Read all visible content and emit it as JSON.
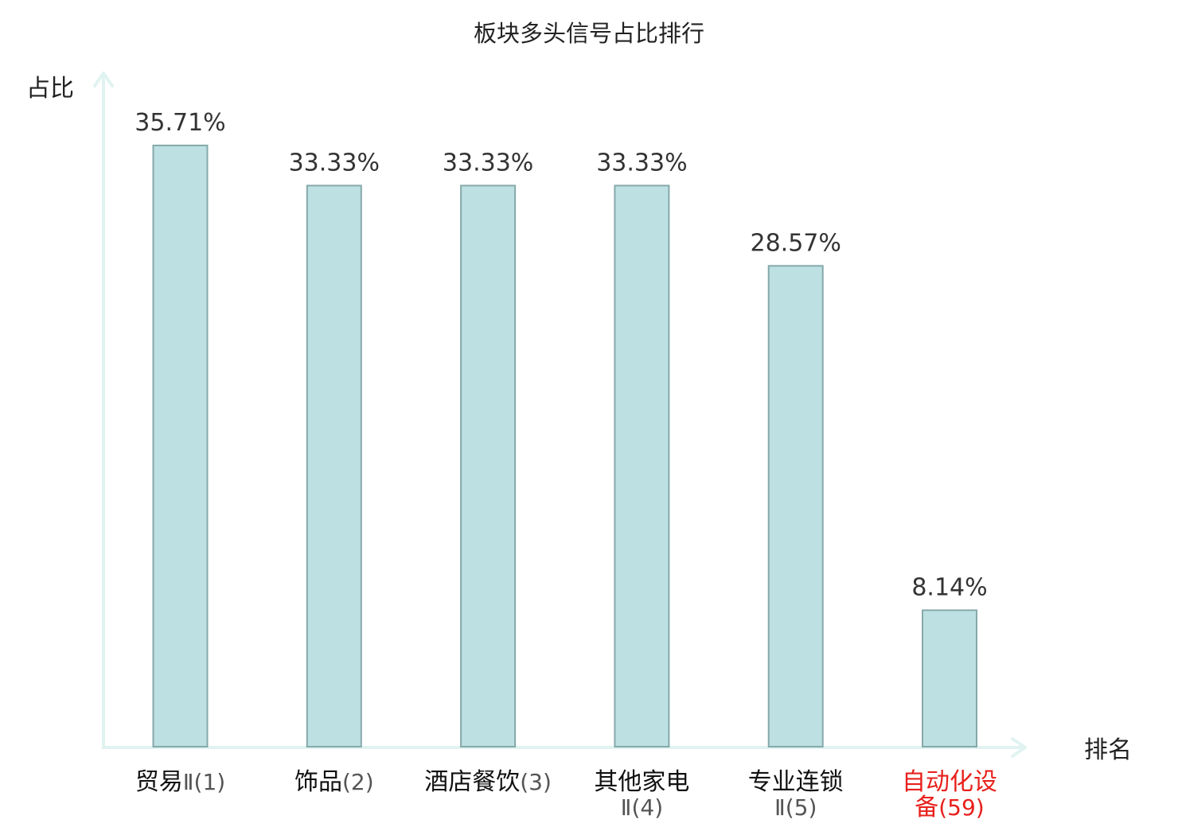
{
  "chart_data": {
    "type": "bar",
    "title": "板块多头信号占比排行",
    "xlabel": "排名",
    "ylabel": "占比",
    "ylim": [
      0,
      0.38
    ],
    "grid": false,
    "categories": [
      {
        "lines": [
          [
            "贸易",
            "Ⅱ(1)"
          ]
        ],
        "highlight": false
      },
      {
        "lines": [
          [
            "饰品",
            "(2)"
          ]
        ],
        "highlight": false
      },
      {
        "lines": [
          [
            "酒店餐饮",
            "(3)"
          ]
        ],
        "highlight": false
      },
      {
        "lines": [
          [
            "其他家电",
            ""
          ],
          [
            "",
            "Ⅱ(4)"
          ]
        ],
        "highlight": false
      },
      {
        "lines": [
          [
            "专业连锁",
            ""
          ],
          [
            "",
            "Ⅱ(5)"
          ]
        ],
        "highlight": false
      },
      {
        "lines": [
          [
            "自动化设",
            ""
          ],
          [
            "备",
            "(59)"
          ]
        ],
        "highlight": true
      }
    ],
    "values": [
      0.3571,
      0.3333,
      0.3333,
      0.3333,
      0.2857,
      0.0814
    ],
    "value_labels": [
      "35.71%",
      "33.33%",
      "33.33%",
      "33.33%",
      "28.57%",
      "8.14%"
    ],
    "colors": {
      "bar_fill": "#bde0e3",
      "bar_stroke": "#86a9ab",
      "axis": "#e0f3f1",
      "highlight_text": "#e8201c",
      "normal_text": "#111111",
      "rank_text": "#555555"
    }
  }
}
